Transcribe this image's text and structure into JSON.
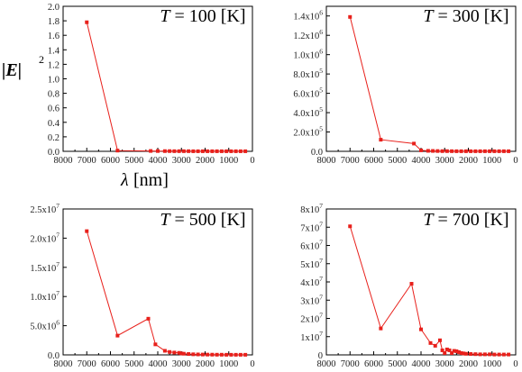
{
  "figure": {
    "ylabel_main": "|E|",
    "ylabel_exp": "2",
    "xlabel_sym": "λ",
    "xlabel_unit": "[nm]"
  },
  "chart_data": [
    {
      "type": "line",
      "title": "T = 100 [K]",
      "title_var": "T",
      "title_val": " = 100 [K]",
      "xlim": [
        8000,
        0
      ],
      "ylim": [
        0,
        2
      ],
      "x_ticks": [
        8000,
        7000,
        6000,
        5000,
        4000,
        3000,
        2000,
        1000,
        0
      ],
      "y_ticks": [
        {
          "v": 0,
          "label": "0.0"
        },
        {
          "v": 0.2,
          "label": "0.2"
        },
        {
          "v": 0.4,
          "label": "0.4"
        },
        {
          "v": 0.6,
          "label": "0.6"
        },
        {
          "v": 0.8,
          "label": "0.8"
        },
        {
          "v": 1.0,
          "label": "1.0"
        },
        {
          "v": 1.2,
          "label": "1.2"
        },
        {
          "v": 1.4,
          "label": "1.4"
        },
        {
          "v": 1.6,
          "label": "1.6"
        },
        {
          "v": 1.8,
          "label": "1.8"
        },
        {
          "v": 2.0,
          "label": "2.0"
        }
      ],
      "color": "#e8201b",
      "x": [
        7000,
        5700,
        4300,
        4000,
        3700,
        3500,
        3300,
        3100,
        2900,
        2700,
        2500,
        2300,
        2100,
        1900,
        1700,
        1500,
        1300,
        1100,
        900,
        700,
        500,
        300
      ],
      "y": [
        1.78,
        0.01,
        0.005,
        0.004,
        0.003,
        0.003,
        0.002,
        0.002,
        0.002,
        0.002,
        0.001,
        0.001,
        0.001,
        0.001,
        0.001,
        0.001,
        0.001,
        0.001,
        0.001,
        0.001,
        0.001,
        0.001
      ]
    },
    {
      "type": "line",
      "title": "T = 300 [K]",
      "title_var": "T",
      "title_val": " = 300 [K]",
      "xlim": [
        8000,
        0
      ],
      "ylim": [
        0,
        1500000
      ],
      "x_ticks": [
        8000,
        7000,
        6000,
        5000,
        4000,
        3000,
        2000,
        1000,
        0
      ],
      "y_ticks": [
        {
          "v": 0,
          "label": "0.0"
        },
        {
          "v": 200000,
          "label": "2.0x10",
          "exp": "5"
        },
        {
          "v": 400000,
          "label": "4.0x10",
          "exp": "5"
        },
        {
          "v": 600000,
          "label": "6.0x10",
          "exp": "5"
        },
        {
          "v": 800000,
          "label": "8.0x10",
          "exp": "5"
        },
        {
          "v": 1000000,
          "label": "1.0x10",
          "exp": "6"
        },
        {
          "v": 1200000,
          "label": "1.2x10",
          "exp": "6"
        },
        {
          "v": 1400000,
          "label": "1.4x10",
          "exp": "6"
        }
      ],
      "color": "#e8201b",
      "x": [
        7000,
        5700,
        4300,
        4000,
        3700,
        3500,
        3300,
        3100,
        2900,
        2700,
        2500,
        2300,
        2100,
        1900,
        1700,
        1500,
        1300,
        1100,
        900,
        700,
        500,
        300
      ],
      "y": [
        1390000,
        120000,
        80000,
        10000,
        5000,
        4000,
        3000,
        2000,
        2000,
        1500,
        1000,
        1000,
        1000,
        1000,
        1000,
        1000,
        1000,
        1000,
        1000,
        1000,
        1000,
        1000
      ]
    },
    {
      "type": "line",
      "title": "T = 500 [K]",
      "title_var": "T",
      "title_val": " = 500 [K]",
      "xlim": [
        8000,
        0
      ],
      "ylim": [
        0,
        25000000
      ],
      "x_ticks": [
        8000,
        7000,
        6000,
        5000,
        4000,
        3000,
        2000,
        1000,
        0
      ],
      "y_ticks": [
        {
          "v": 0,
          "label": "0.0"
        },
        {
          "v": 5000000,
          "label": "5.0x10",
          "exp": "6"
        },
        {
          "v": 10000000,
          "label": "1.0x10",
          "exp": "7"
        },
        {
          "v": 15000000,
          "label": "1.5x10",
          "exp": "7"
        },
        {
          "v": 20000000,
          "label": "2.0x10",
          "exp": "7"
        },
        {
          "v": 25000000,
          "label": "2.5x10",
          "exp": "7"
        }
      ],
      "color": "#e8201b",
      "x": [
        7000,
        5700,
        4400,
        4100,
        3700,
        3500,
        3300,
        3100,
        3000,
        2900,
        2700,
        2500,
        2300,
        2100,
        1900,
        1700,
        1500,
        1300,
        1100,
        900,
        700,
        500,
        300
      ],
      "y": [
        21200000,
        3300000,
        6200000,
        1800000,
        700000,
        500000,
        400000,
        350000,
        250000,
        200000,
        150000,
        100000,
        80000,
        60000,
        50000,
        40000,
        30000,
        30000,
        20000,
        20000,
        20000,
        20000,
        20000
      ]
    },
    {
      "type": "line",
      "title": "T = 700 [K]",
      "title_var": "T",
      "title_val": " = 700 [K]",
      "xlim": [
        8000,
        0
      ],
      "ylim": [
        0,
        80000000
      ],
      "x_ticks": [
        8000,
        7000,
        6000,
        5000,
        4000,
        3000,
        2000,
        1000,
        0
      ],
      "y_ticks": [
        {
          "v": 0,
          "label": "0"
        },
        {
          "v": 10000000,
          "label": "1x10",
          "exp": "7"
        },
        {
          "v": 20000000,
          "label": "2x10",
          "exp": "7"
        },
        {
          "v": 30000000,
          "label": "3x10",
          "exp": "7"
        },
        {
          "v": 40000000,
          "label": "4x10",
          "exp": "7"
        },
        {
          "v": 50000000,
          "label": "5x10",
          "exp": "7"
        },
        {
          "v": 60000000,
          "label": "6x10",
          "exp": "7"
        },
        {
          "v": 70000000,
          "label": "7x10",
          "exp": "7"
        },
        {
          "v": 80000000,
          "label": "8x10",
          "exp": "7"
        }
      ],
      "color": "#e8201b",
      "x": [
        7000,
        5700,
        4400,
        4000,
        3600,
        3400,
        3200,
        3100,
        3000,
        2900,
        2800,
        2700,
        2600,
        2500,
        2400,
        2300,
        2200,
        2100,
        1900,
        1700,
        1500,
        1300,
        1100,
        900,
        700,
        500,
        300
      ],
      "y": [
        70500000,
        14500000,
        39000000,
        14000000,
        6500000,
        5000000,
        8000000,
        2500000,
        1000000,
        3000000,
        2500000,
        1000000,
        2200000,
        2000000,
        1500000,
        1000000,
        800000,
        600000,
        500000,
        400000,
        300000,
        300000,
        300000,
        200000,
        200000,
        200000,
        200000
      ]
    }
  ]
}
